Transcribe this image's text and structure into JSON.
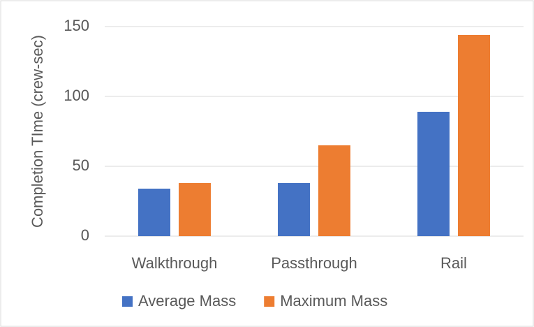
{
  "chart_data": {
    "type": "bar",
    "ylabel": "Completion TIme (crew-sec)",
    "categories": [
      "Walkthrough",
      "Passthrough",
      "Rail"
    ],
    "series": [
      {
        "name": "Average Mass",
        "color": "#4472c4",
        "values": [
          34,
          38,
          89
        ]
      },
      {
        "name": "Maximum Mass",
        "color": "#ed7d31",
        "values": [
          38,
          65,
          144
        ]
      }
    ],
    "ylim": [
      0,
      150
    ],
    "yticks": [
      0,
      50,
      100,
      150
    ],
    "grid": true,
    "legend": "bottom"
  }
}
